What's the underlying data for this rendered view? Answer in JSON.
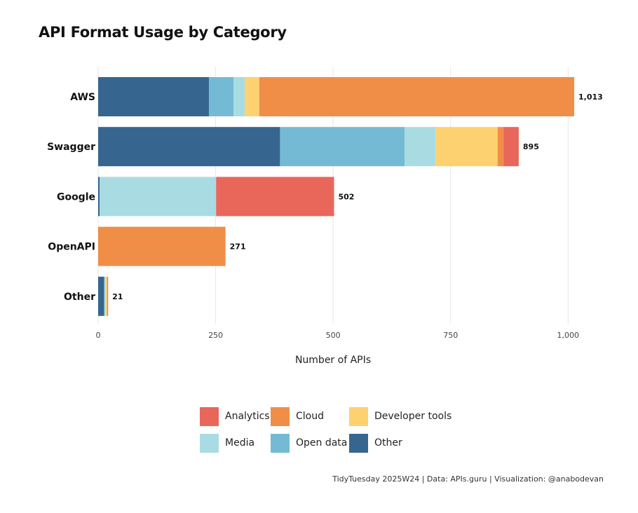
{
  "title": "API Format Usage by Category",
  "caption": "TidyTuesday 2025W24 | Data: APIs.guru | Visualization: @anabodevan",
  "chart_data": {
    "type": "bar",
    "orientation": "horizontal",
    "stacked": true,
    "title": "API Format Usage by Category",
    "xlabel": "Number of APIs",
    "ylabel": "",
    "xlim": [
      0,
      1013
    ],
    "x_ticks": [
      0,
      250,
      500,
      750,
      1000
    ],
    "x_tick_labels": [
      "0",
      "250",
      "500",
      "750",
      "1,000"
    ],
    "grid": "vertical major gridlines",
    "legend_position": "bottom",
    "categories": [
      "AWS",
      "Swagger",
      "Google",
      "OpenAPI",
      "Other"
    ],
    "totals": [
      1013,
      895,
      502,
      271,
      21
    ],
    "total_labels": [
      "1,013",
      "895",
      "502",
      "271",
      "21"
    ],
    "series": [
      {
        "name": "Other",
        "color": "#36668F",
        "values": [
          236,
          387,
          3,
          0,
          13
        ]
      },
      {
        "name": "Open data",
        "color": "#74BAD5",
        "values": [
          52,
          265,
          0,
          0,
          0
        ]
      },
      {
        "name": "Media",
        "color": "#A9DCE2",
        "values": [
          24,
          66,
          248,
          0,
          2
        ]
      },
      {
        "name": "Developer tools",
        "color": "#FDD170",
        "values": [
          31,
          132,
          0,
          0,
          4
        ]
      },
      {
        "name": "Cloud",
        "color": "#F08E48",
        "values": [
          670,
          13,
          0,
          271,
          1
        ]
      },
      {
        "name": "Analytics",
        "color": "#E9665B",
        "values": [
          0,
          32,
          251,
          0,
          1
        ]
      }
    ]
  },
  "legend": {
    "items": [
      {
        "label": "Analytics",
        "color": "#E9665B"
      },
      {
        "label": "Cloud",
        "color": "#F08E48"
      },
      {
        "label": "Developer tools",
        "color": "#FDD170"
      },
      {
        "label": "Media",
        "color": "#A9DCE2"
      },
      {
        "label": "Open data",
        "color": "#74BAD5"
      },
      {
        "label": "Other",
        "color": "#36668F"
      }
    ]
  }
}
